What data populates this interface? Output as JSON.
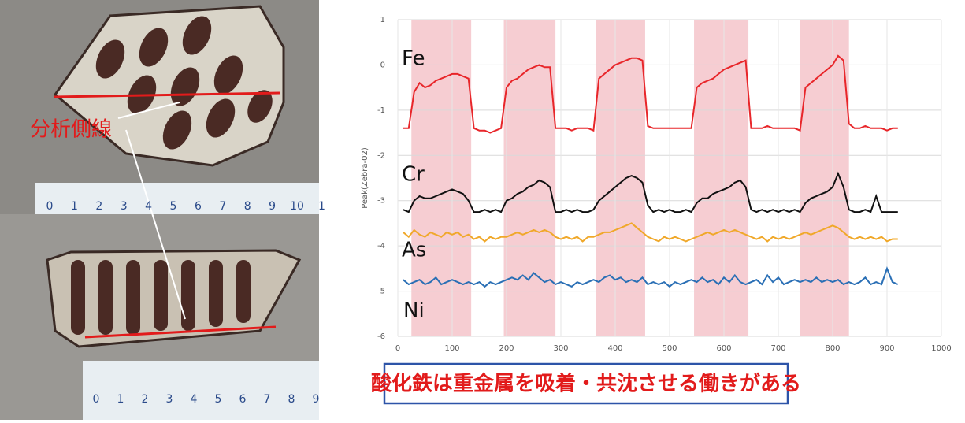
{
  "photo": {
    "label": "分析側線",
    "top_ruler_labels": [
      0,
      1,
      2,
      3,
      4,
      5,
      6,
      7,
      8,
      9,
      10,
      1
    ],
    "bottom_ruler_labels": [
      0,
      1,
      2,
      3,
      4,
      5,
      6,
      7,
      8,
      9
    ]
  },
  "caption": "酸化鉄は重金属を吸着・共沈させる働きがある",
  "chart_data": {
    "type": "line",
    "y_label": "Peak(Zebra-02)",
    "grid": true,
    "xlim": [
      0,
      1000
    ],
    "xticks": [
      0,
      100,
      200,
      300,
      400,
      500,
      600,
      700,
      800,
      900,
      1000
    ],
    "ylim": [
      -6,
      1
    ],
    "yticks": [
      -6,
      -5,
      -4,
      -3,
      -2,
      -1,
      0,
      1
    ],
    "shaded_ranges": [
      [
        25,
        135
      ],
      [
        195,
        290
      ],
      [
        365,
        455
      ],
      [
        545,
        645
      ],
      [
        740,
        830
      ]
    ],
    "shade_color": "#f6cdd2",
    "x": [
      10,
      20,
      30,
      40,
      50,
      60,
      70,
      80,
      90,
      100,
      110,
      120,
      130,
      140,
      150,
      160,
      170,
      180,
      190,
      200,
      210,
      220,
      230,
      240,
      250,
      260,
      270,
      280,
      290,
      300,
      310,
      320,
      330,
      340,
      350,
      360,
      370,
      380,
      390,
      400,
      410,
      420,
      430,
      440,
      450,
      460,
      470,
      480,
      490,
      500,
      510,
      520,
      530,
      540,
      550,
      560,
      570,
      580,
      590,
      600,
      610,
      620,
      630,
      640,
      650,
      660,
      670,
      680,
      690,
      700,
      710,
      720,
      730,
      740,
      750,
      760,
      770,
      780,
      790,
      800,
      810,
      820,
      830,
      840,
      850,
      860,
      870,
      880,
      890,
      900,
      910,
      920
    ],
    "series": [
      {
        "name": "Fe",
        "color": "#e8262a",
        "values": [
          -1.4,
          -1.4,
          -0.6,
          -0.4,
          -0.5,
          -0.45,
          -0.35,
          -0.3,
          -0.25,
          -0.2,
          -0.2,
          -0.25,
          -0.3,
          -1.4,
          -1.45,
          -1.45,
          -1.5,
          -1.45,
          -1.4,
          -0.5,
          -0.35,
          -0.3,
          -0.2,
          -0.1,
          -0.05,
          0,
          -0.05,
          -0.05,
          -1.4,
          -1.4,
          -1.4,
          -1.45,
          -1.4,
          -1.4,
          -1.4,
          -1.45,
          -0.3,
          -0.2,
          -0.1,
          0,
          0.05,
          0.1,
          0.15,
          0.15,
          0.1,
          -1.35,
          -1.4,
          -1.4,
          -1.4,
          -1.4,
          -1.4,
          -1.4,
          -1.4,
          -1.4,
          -0.5,
          -0.4,
          -0.35,
          -0.3,
          -0.2,
          -0.1,
          -0.05,
          0,
          0.05,
          0.1,
          -1.4,
          -1.4,
          -1.4,
          -1.35,
          -1.4,
          -1.4,
          -1.4,
          -1.4,
          -1.4,
          -1.45,
          -0.5,
          -0.4,
          -0.3,
          -0.2,
          -0.1,
          0,
          0.2,
          0.1,
          -1.3,
          -1.4,
          -1.4,
          -1.35,
          -1.4,
          -1.4,
          -1.4,
          -1.45,
          -1.4,
          -1.4
        ]
      },
      {
        "name": "Cr",
        "color": "#111111",
        "values": [
          -3.2,
          -3.25,
          -3.0,
          -2.9,
          -2.95,
          -2.95,
          -2.9,
          -2.85,
          -2.8,
          -2.75,
          -2.8,
          -2.85,
          -3.0,
          -3.25,
          -3.25,
          -3.2,
          -3.25,
          -3.2,
          -3.25,
          -3.0,
          -2.95,
          -2.85,
          -2.8,
          -2.7,
          -2.65,
          -2.55,
          -2.6,
          -2.7,
          -3.25,
          -3.25,
          -3.2,
          -3.25,
          -3.2,
          -3.25,
          -3.25,
          -3.2,
          -3.0,
          -2.9,
          -2.8,
          -2.7,
          -2.6,
          -2.5,
          -2.45,
          -2.5,
          -2.6,
          -3.1,
          -3.25,
          -3.2,
          -3.25,
          -3.2,
          -3.25,
          -3.25,
          -3.2,
          -3.25,
          -3.05,
          -2.95,
          -2.95,
          -2.85,
          -2.8,
          -2.75,
          -2.7,
          -2.6,
          -2.55,
          -2.7,
          -3.2,
          -3.25,
          -3.2,
          -3.25,
          -3.2,
          -3.25,
          -3.2,
          -3.25,
          -3.2,
          -3.25,
          -3.05,
          -2.95,
          -2.9,
          -2.85,
          -2.8,
          -2.7,
          -2.4,
          -2.7,
          -3.2,
          -3.25,
          -3.25,
          -3.2,
          -3.25,
          -2.9,
          -3.25,
          -3.25,
          -3.25,
          -3.25
        ]
      },
      {
        "name": "As",
        "color": "#f0a82a",
        "values": [
          -3.7,
          -3.8,
          -3.65,
          -3.75,
          -3.8,
          -3.7,
          -3.75,
          -3.8,
          -3.7,
          -3.75,
          -3.7,
          -3.8,
          -3.75,
          -3.85,
          -3.8,
          -3.9,
          -3.8,
          -3.85,
          -3.8,
          -3.8,
          -3.75,
          -3.7,
          -3.75,
          -3.7,
          -3.65,
          -3.7,
          -3.65,
          -3.7,
          -3.8,
          -3.85,
          -3.8,
          -3.85,
          -3.8,
          -3.9,
          -3.8,
          -3.8,
          -3.75,
          -3.7,
          -3.7,
          -3.65,
          -3.6,
          -3.55,
          -3.5,
          -3.6,
          -3.7,
          -3.8,
          -3.85,
          -3.9,
          -3.8,
          -3.85,
          -3.8,
          -3.85,
          -3.9,
          -3.85,
          -3.8,
          -3.75,
          -3.7,
          -3.75,
          -3.7,
          -3.65,
          -3.7,
          -3.65,
          -3.7,
          -3.75,
          -3.8,
          -3.85,
          -3.8,
          -3.9,
          -3.8,
          -3.85,
          -3.8,
          -3.85,
          -3.8,
          -3.75,
          -3.7,
          -3.75,
          -3.7,
          -3.65,
          -3.6,
          -3.55,
          -3.6,
          -3.7,
          -3.8,
          -3.85,
          -3.8,
          -3.85,
          -3.8,
          -3.85,
          -3.8,
          -3.9,
          -3.85,
          -3.85
        ]
      },
      {
        "name": "Ni",
        "color": "#2a6fb5",
        "values": [
          -4.75,
          -4.85,
          -4.8,
          -4.75,
          -4.85,
          -4.8,
          -4.7,
          -4.85,
          -4.8,
          -4.75,
          -4.8,
          -4.85,
          -4.8,
          -4.85,
          -4.8,
          -4.9,
          -4.8,
          -4.85,
          -4.8,
          -4.75,
          -4.7,
          -4.75,
          -4.65,
          -4.75,
          -4.6,
          -4.7,
          -4.8,
          -4.75,
          -4.85,
          -4.8,
          -4.85,
          -4.9,
          -4.8,
          -4.85,
          -4.8,
          -4.75,
          -4.8,
          -4.7,
          -4.65,
          -4.75,
          -4.7,
          -4.8,
          -4.75,
          -4.8,
          -4.7,
          -4.85,
          -4.8,
          -4.85,
          -4.8,
          -4.9,
          -4.8,
          -4.85,
          -4.8,
          -4.75,
          -4.8,
          -4.7,
          -4.8,
          -4.75,
          -4.85,
          -4.7,
          -4.8,
          -4.65,
          -4.8,
          -4.85,
          -4.8,
          -4.75,
          -4.85,
          -4.65,
          -4.8,
          -4.7,
          -4.85,
          -4.8,
          -4.75,
          -4.8,
          -4.75,
          -4.8,
          -4.7,
          -4.8,
          -4.75,
          -4.8,
          -4.75,
          -4.85,
          -4.8,
          -4.85,
          -4.8,
          -4.7,
          -4.85,
          -4.8,
          -4.85,
          -4.5,
          -4.8,
          -4.85
        ]
      }
    ]
  }
}
